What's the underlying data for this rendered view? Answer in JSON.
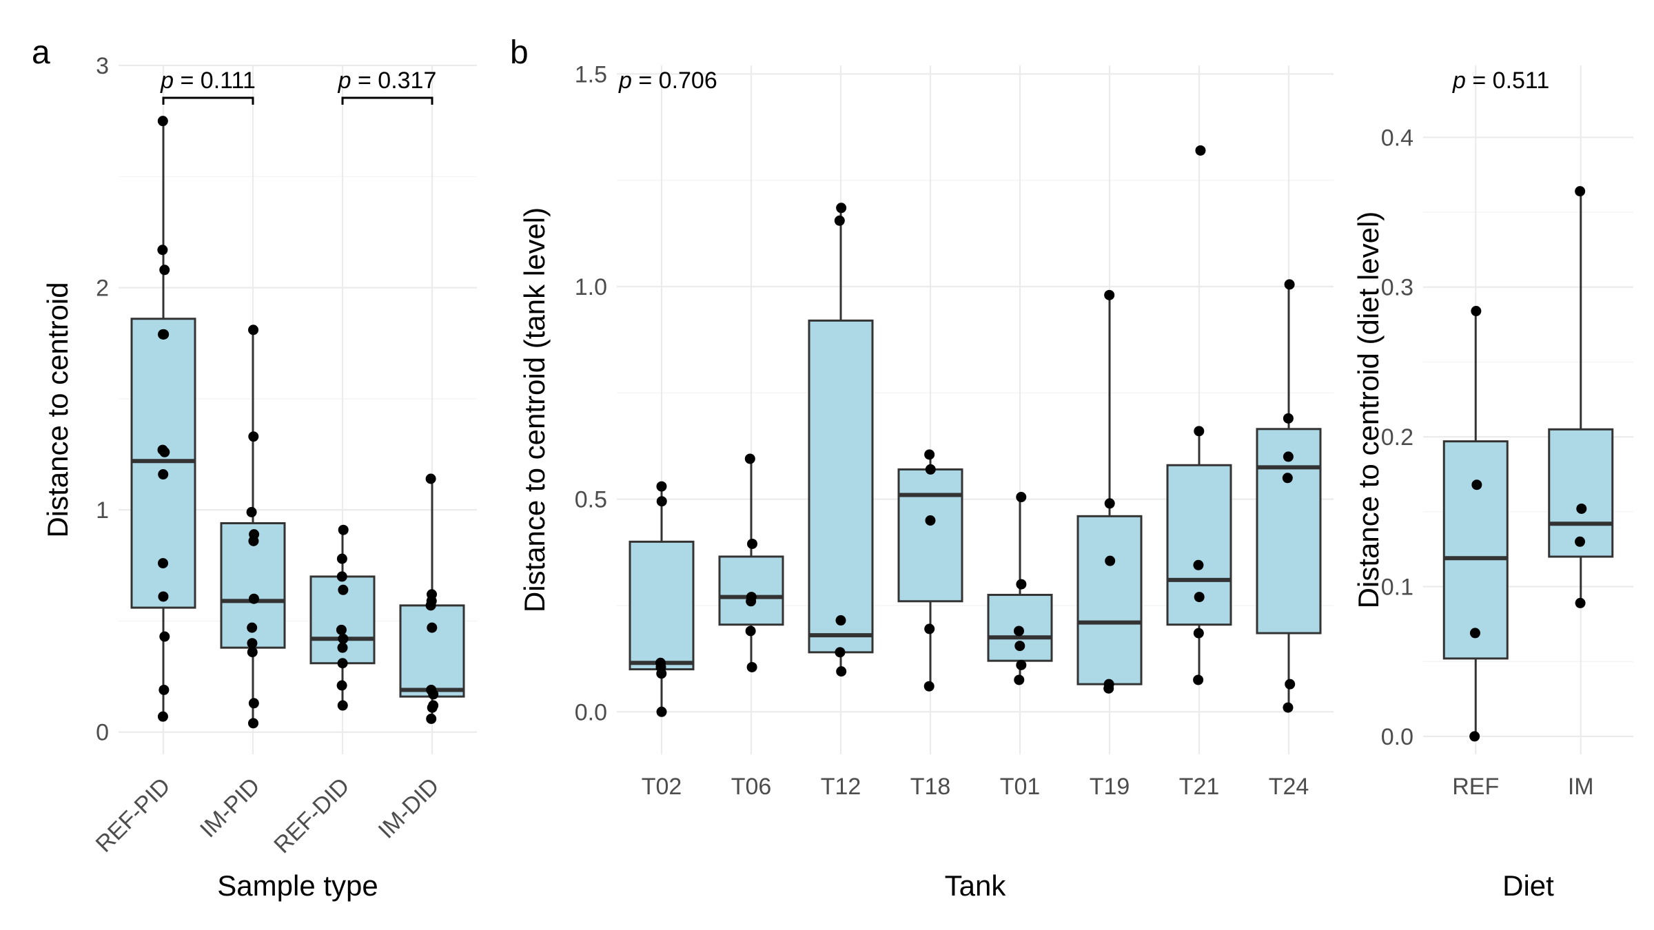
{
  "panels": {
    "a_label": "a",
    "b_label": "b"
  },
  "chart_data": [
    {
      "type": "box",
      "panel": "a",
      "xlabel": "Sample type",
      "ylabel": "Distance to centroid",
      "ylim": [
        -0.1,
        3.0
      ],
      "yticks": [
        0,
        1,
        2,
        3
      ],
      "grid": true,
      "categories": [
        "REF-PID",
        "IM-PID",
        "REF-DID",
        "IM-DID"
      ],
      "boxes": [
        {
          "q1": 0.56,
          "median": 1.22,
          "q3": 1.86,
          "whisker_low": 0.07,
          "whisker_high": 2.75
        },
        {
          "q1": 0.38,
          "median": 0.59,
          "q3": 0.94,
          "whisker_low": 0.04,
          "whisker_high": 1.81
        },
        {
          "q1": 0.31,
          "median": 0.42,
          "q3": 0.7,
          "whisker_low": 0.12,
          "whisker_high": 0.91
        },
        {
          "q1": 0.16,
          "median": 0.19,
          "q3": 0.57,
          "whisker_low": 0.06,
          "whisker_high": 1.14
        }
      ],
      "points": [
        [
          2.75,
          2.17,
          2.08,
          1.79,
          1.79,
          1.27,
          1.26,
          1.16,
          0.76,
          0.61,
          0.43,
          0.19,
          0.07
        ],
        [
          1.81,
          1.33,
          0.99,
          0.89,
          0.86,
          0.6,
          0.47,
          0.4,
          0.36,
          0.13,
          0.04
        ],
        [
          0.91,
          0.78,
          0.7,
          0.64,
          0.46,
          0.42,
          0.38,
          0.31,
          0.21,
          0.12
        ],
        [
          1.14,
          0.62,
          0.59,
          0.57,
          0.47,
          0.19,
          0.17,
          0.12,
          0.11,
          0.06
        ]
      ],
      "annotations": [
        {
          "p_symbol": "p",
          "value_text": " = 0.111",
          "from": "REF-PID",
          "to": "IM-PID"
        },
        {
          "p_symbol": "p",
          "value_text": " = 0.317",
          "from": "REF-DID",
          "to": "IM-DID"
        }
      ]
    },
    {
      "type": "box",
      "panel": "b-tank",
      "xlabel": "Tank",
      "ylabel": "Distance to centroid (tank level)",
      "ylim": [
        -0.1,
        1.52
      ],
      "yticks": [
        0.0,
        0.5,
        1.0,
        1.5
      ],
      "ytick_labels": [
        "0.0",
        "0.5",
        "1.0",
        "1.5"
      ],
      "grid": true,
      "categories": [
        "T02",
        "T06",
        "T12",
        "T18",
        "T01",
        "T19",
        "T21",
        "T24"
      ],
      "boxes": [
        {
          "q1": 0.1,
          "median": 0.115,
          "q3": 0.4,
          "whisker_low": 0.0,
          "whisker_high": 0.53
        },
        {
          "q1": 0.205,
          "median": 0.27,
          "q3": 0.365,
          "whisker_low": 0.105,
          "whisker_high": 0.595
        },
        {
          "q1": 0.14,
          "median": 0.18,
          "q3": 0.92,
          "whisker_low": 0.095,
          "whisker_high": 1.185
        },
        {
          "q1": 0.26,
          "median": 0.51,
          "q3": 0.57,
          "whisker_low": 0.06,
          "whisker_high": 0.605
        },
        {
          "q1": 0.12,
          "median": 0.175,
          "q3": 0.275,
          "whisker_low": 0.075,
          "whisker_high": 0.505
        },
        {
          "q1": 0.065,
          "median": 0.21,
          "q3": 0.46,
          "whisker_low": 0.055,
          "whisker_high": 0.98
        },
        {
          "q1": 0.205,
          "median": 0.31,
          "q3": 0.58,
          "whisker_low": 0.075,
          "whisker_high": 0.66
        },
        {
          "q1": 0.185,
          "median": 0.575,
          "q3": 0.665,
          "whisker_low": 0.01,
          "whisker_high": 1.005
        }
      ],
      "points": [
        [
          0.53,
          0.495,
          0.115,
          0.105,
          0.09,
          0.0
        ],
        [
          0.595,
          0.395,
          0.27,
          0.26,
          0.19,
          0.105
        ],
        [
          1.185,
          1.155,
          0.215,
          0.14,
          0.095
        ],
        [
          0.605,
          0.57,
          0.45,
          0.195,
          0.06
        ],
        [
          0.505,
          0.3,
          0.19,
          0.155,
          0.11,
          0.075
        ],
        [
          0.98,
          0.49,
          0.355,
          0.065,
          0.055
        ],
        [
          1.32,
          0.66,
          0.345,
          0.27,
          0.185,
          0.075
        ],
        [
          1.005,
          0.69,
          0.6,
          0.55,
          0.065,
          0.01
        ]
      ],
      "annotation": {
        "p_symbol": "p",
        "value_text": " = 0.706"
      }
    },
    {
      "type": "box",
      "panel": "b-diet",
      "xlabel": "Diet",
      "ylabel": "Distance to centroid (diet level)",
      "ylim": [
        -0.012,
        0.448
      ],
      "yticks": [
        0.0,
        0.1,
        0.2,
        0.3,
        0.4
      ],
      "ytick_labels": [
        "0.0",
        "0.1",
        "0.2",
        "0.3",
        "0.4"
      ],
      "grid": true,
      "categories": [
        "REF",
        "IM"
      ],
      "boxes": [
        {
          "q1": 0.052,
          "median": 0.119,
          "q3": 0.197,
          "whisker_low": 0.0,
          "whisker_high": 0.284
        },
        {
          "q1": 0.12,
          "median": 0.142,
          "q3": 0.205,
          "whisker_low": 0.089,
          "whisker_high": 0.364
        }
      ],
      "points": [
        [
          0.284,
          0.168,
          0.069,
          0.0
        ],
        [
          0.364,
          0.152,
          0.13,
          0.089
        ]
      ],
      "annotation": {
        "p_symbol": "p",
        "value_text": " = 0.511"
      }
    }
  ]
}
